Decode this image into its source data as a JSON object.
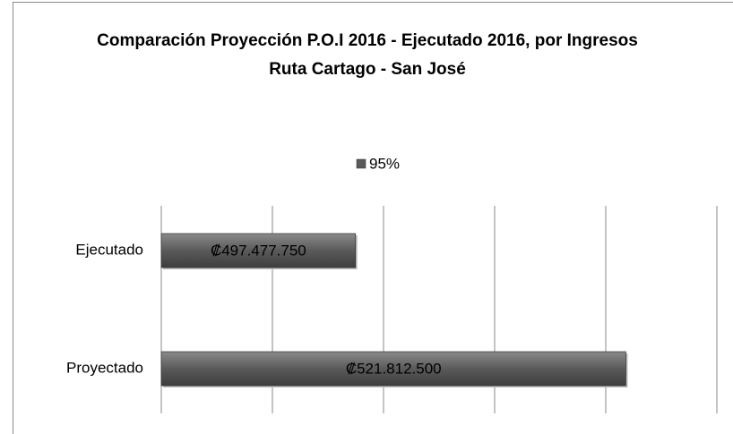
{
  "chart_data": {
    "type": "hbar",
    "title": "Comparación Proyección P.O.I 2016 - Ejecutado 2016, por Ingresos Ruta Cartago - San José",
    "categories": [
      "Ejecutado",
      "Proyectado"
    ],
    "series": [
      {
        "name": "95%",
        "color": "#5a5a5a",
        "values": [
          497477750,
          521812500
        ],
        "value_labels": [
          "₡497.477.750",
          "₡521.812.500"
        ]
      }
    ],
    "xlim": [
      480000000,
      530000000
    ],
    "xticks": [
      480000000,
      490000000,
      500000000,
      510000000,
      520000000,
      530000000
    ],
    "grid": true
  }
}
